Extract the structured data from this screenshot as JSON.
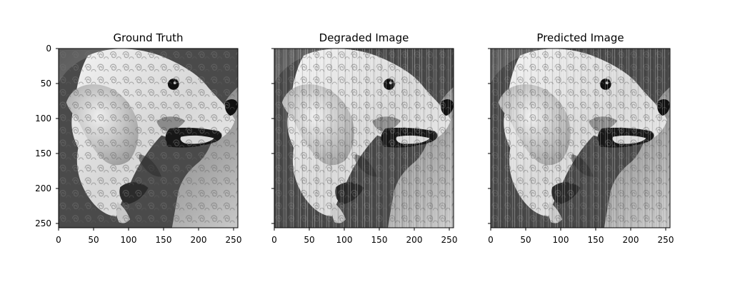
{
  "figure": {
    "panels": [
      {
        "title": "Ground Truth",
        "x_ticks": [
          "0",
          "50",
          "100",
          "150",
          "200",
          "250"
        ],
        "y_ticks": [
          "0",
          "50",
          "100",
          "150",
          "200",
          "250"
        ],
        "image_label": "ground-truth-dog-image"
      },
      {
        "title": "Degraded Image",
        "x_ticks": [
          "0",
          "50",
          "100",
          "150",
          "200",
          "250"
        ],
        "y_ticks": [],
        "image_label": "degraded-dog-image"
      },
      {
        "title": "Predicted Image",
        "x_ticks": [
          "0",
          "50",
          "100",
          "150",
          "200",
          "250"
        ],
        "y_ticks": [],
        "image_label": "predicted-dog-image"
      }
    ],
    "colors": {
      "background": "#ffffff",
      "axis": "#000000"
    }
  }
}
